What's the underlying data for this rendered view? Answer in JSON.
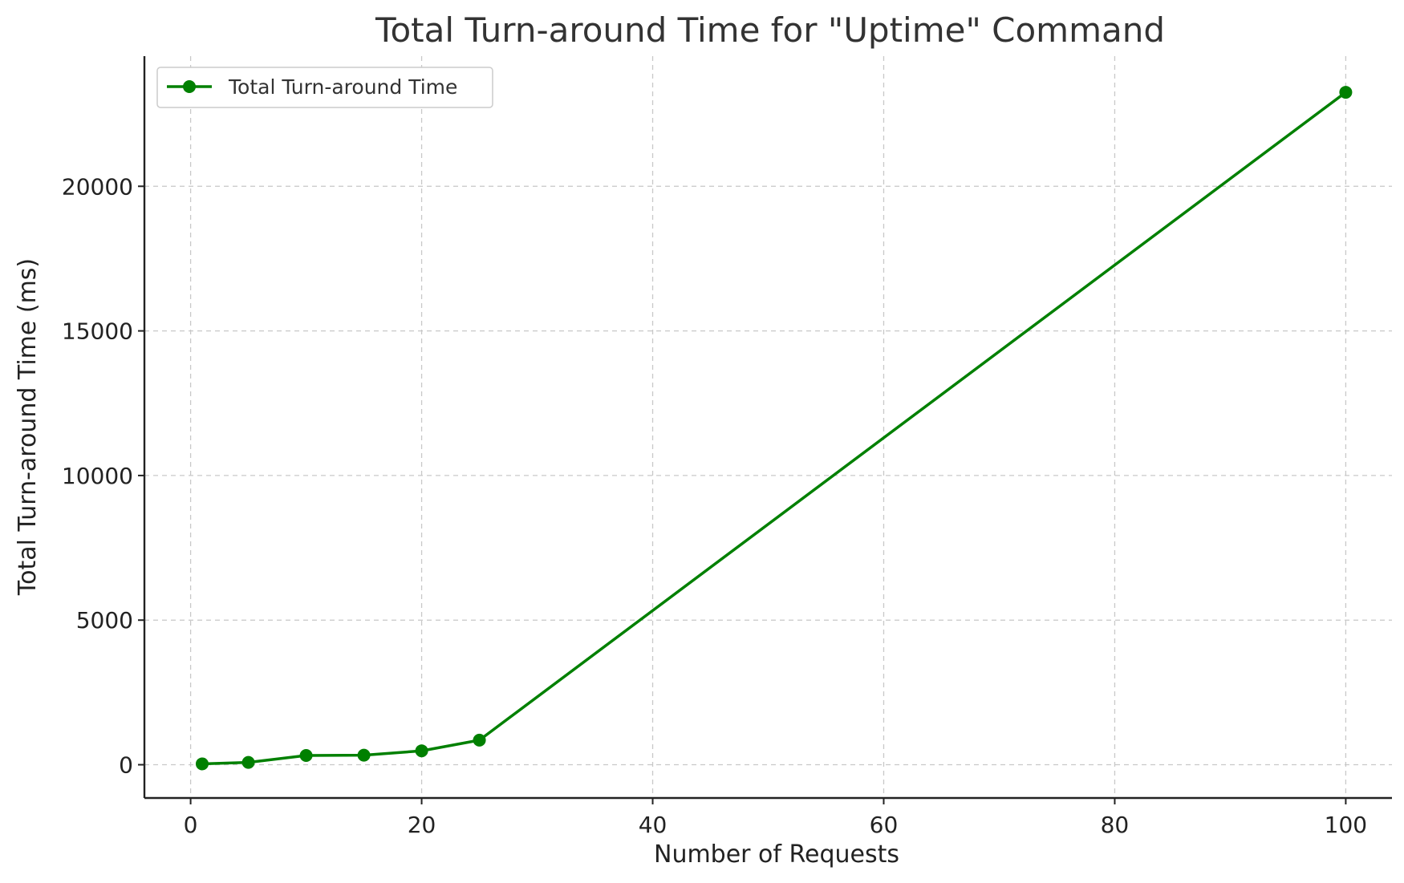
{
  "chart_data": {
    "type": "line",
    "title": "Total Turn-around Time for \"Uptime\" Command",
    "xlabel": "Number of Requests",
    "ylabel": "Total Turn-around Time (ms)",
    "xlim": [
      -4,
      104
    ],
    "ylim": [
      -1150,
      24500
    ],
    "xticks": [
      0,
      20,
      40,
      60,
      80,
      100
    ],
    "yticks": [
      0,
      5000,
      10000,
      15000,
      20000
    ],
    "grid": true,
    "legend_position": "top-left",
    "series": [
      {
        "name": "Total Turn-around Time",
        "color": "#008000",
        "marker": "circle",
        "points": [
          {
            "x": 1,
            "y": 30
          },
          {
            "x": 5,
            "y": 80
          },
          {
            "x": 10,
            "y": 320
          },
          {
            "x": 15,
            "y": 330
          },
          {
            "x": 20,
            "y": 480
          },
          {
            "x": 25,
            "y": 850
          },
          {
            "x": 100,
            "y": 23250
          }
        ]
      }
    ]
  }
}
